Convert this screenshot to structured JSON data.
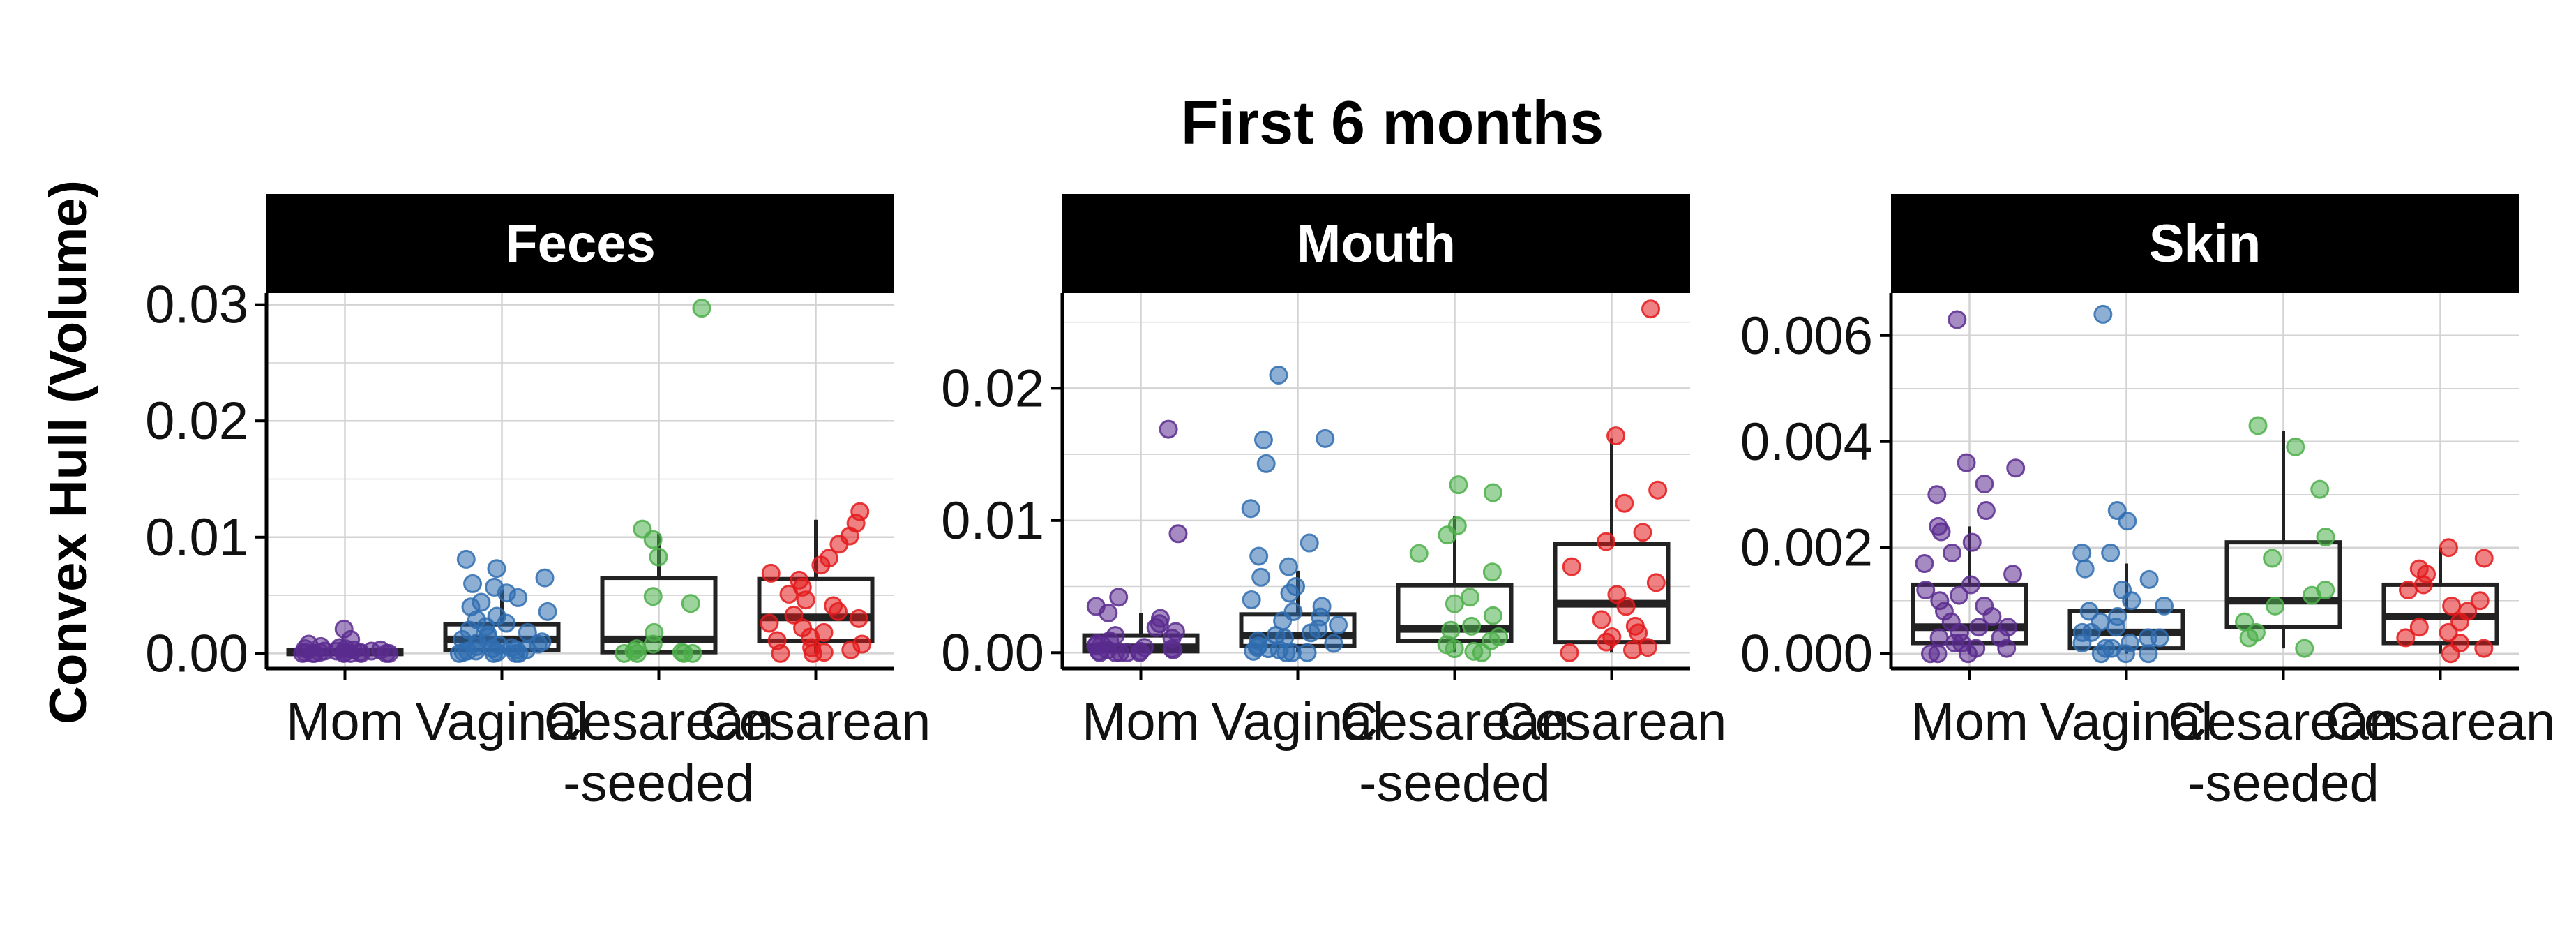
{
  "colors": {
    "Mom": "#5B2C8F",
    "Vaginal": "#2F6DB0",
    "Cesarean-seeded": "#4DAF4A",
    "Cesarean": "#E41A1C",
    "strip_bg": "#000000",
    "strip_text": "#ffffff",
    "grid": "#d3d3d3",
    "box": "#222222"
  },
  "chart_data": {
    "type": "box",
    "title": "First 6 months",
    "ylabel": "Convex Hull (Volume)",
    "xlabel": "",
    "grid": true,
    "categories": [
      "Mom",
      "Vaginal",
      "Cesarean-seeded",
      "Cesarean"
    ],
    "category_labels": [
      [
        "Mom"
      ],
      [
        "Vaginal"
      ],
      [
        "Cesarean",
        "-seeded"
      ],
      [
        "Cesarean"
      ]
    ],
    "panels": [
      {
        "name": "Feces",
        "ylim": [
          -0.0013,
          0.031
        ],
        "yticks": [
          0,
          0.01,
          0.02,
          0.03
        ],
        "ytick_labels": [
          "0.00",
          "0.01",
          "0.02",
          "0.03"
        ],
        "boxes": [
          {
            "q1": 0.0,
            "median": 0.0001,
            "q3": 0.0003,
            "whisker_low": 0.0,
            "whisker_high": 0.0006
          },
          {
            "q1": 0.0003,
            "median": 0.0012,
            "q3": 0.0025,
            "whisker_low": 0.0,
            "whisker_high": 0.0055
          },
          {
            "q1": 0.0001,
            "median": 0.0012,
            "q3": 0.0065,
            "whisker_low": 0.0,
            "whisker_high": 0.0103
          },
          {
            "q1": 0.0011,
            "median": 0.0031,
            "q3": 0.0064,
            "whisker_low": 0.0,
            "whisker_high": 0.0115
          }
        ],
        "points": [
          [
            0.0021,
            0.0012,
            0.0008,
            0.0006,
            0.0005,
            0.0004,
            0.0004,
            0.0003,
            0.0003,
            0.0002,
            0.0002,
            0.0002,
            0.0001,
            0.0001,
            0.0001,
            0.0001,
            0.0,
            0.0,
            0.0,
            0.0,
            0.0,
            0.0,
            0.0,
            0.0
          ],
          [
            0.0081,
            0.0073,
            0.0065,
            0.006,
            0.0057,
            0.0052,
            0.0048,
            0.0044,
            0.004,
            0.0036,
            0.0032,
            0.0029,
            0.0026,
            0.0023,
            0.002,
            0.0018,
            0.0016,
            0.0014,
            0.0012,
            0.001,
            0.0009,
            0.0008,
            0.0007,
            0.0006,
            0.0005,
            0.0004,
            0.0003,
            0.0003,
            0.0002,
            0.0002,
            0.0001,
            0.0001,
            0.0,
            0.0,
            0.0,
            0.0
          ],
          [
            0.0297,
            0.0107,
            0.0098,
            0.0083,
            0.0049,
            0.0043,
            0.0018,
            0.0008,
            0.0004,
            0.0002,
            0.0001,
            0.0,
            0.0,
            0.0,
            0.0
          ],
          [
            0.0122,
            0.0112,
            0.0101,
            0.0094,
            0.0082,
            0.0076,
            0.0069,
            0.0063,
            0.0057,
            0.0051,
            0.0046,
            0.0041,
            0.0036,
            0.0033,
            0.003,
            0.0026,
            0.0022,
            0.0018,
            0.0014,
            0.0011,
            0.0008,
            0.0005,
            0.0003,
            0.0001,
            0.0,
            0.0
          ]
        ]
      },
      {
        "name": "Mouth",
        "ylim": [
          -0.0012,
          0.0272
        ],
        "yticks": [
          0,
          0.01,
          0.02
        ],
        "ytick_labels": [
          "0.00",
          "0.01",
          "0.02"
        ],
        "boxes": [
          {
            "q1": 0.0001,
            "median": 0.0004,
            "q3": 0.0013,
            "whisker_low": 0.0,
            "whisker_high": 0.003
          },
          {
            "q1": 0.0005,
            "median": 0.0013,
            "q3": 0.0029,
            "whisker_low": 0.0,
            "whisker_high": 0.0062
          },
          {
            "q1": 0.0009,
            "median": 0.0018,
            "q3": 0.0051,
            "whisker_low": 0.0,
            "whisker_high": 0.0103
          },
          {
            "q1": 0.0008,
            "median": 0.0037,
            "q3": 0.0082,
            "whisker_low": 0.0,
            "whisker_high": 0.0162
          }
        ],
        "points": [
          [
            0.0169,
            0.009,
            0.0042,
            0.0035,
            0.003,
            0.0026,
            0.0022,
            0.0019,
            0.0016,
            0.0013,
            0.0011,
            0.0009,
            0.0007,
            0.0006,
            0.0005,
            0.0004,
            0.0003,
            0.0002,
            0.0002,
            0.0001,
            0.0001,
            0.0,
            0.0,
            0.0,
            0.0,
            0.0
          ],
          [
            0.021,
            0.0162,
            0.0161,
            0.0143,
            0.0109,
            0.0083,
            0.0073,
            0.0065,
            0.0057,
            0.005,
            0.0045,
            0.004,
            0.0035,
            0.0031,
            0.0027,
            0.0024,
            0.0021,
            0.0018,
            0.0015,
            0.0013,
            0.0011,
            0.0009,
            0.0007,
            0.0005,
            0.0004,
            0.0003,
            0.0002,
            0.0001,
            0.0,
            0.0,
            0.0
          ],
          [
            0.0127,
            0.0121,
            0.0096,
            0.0089,
            0.0075,
            0.0061,
            0.0042,
            0.0037,
            0.0028,
            0.002,
            0.0017,
            0.0012,
            0.0009,
            0.0006,
            0.0003,
            0.0001,
            0.0
          ],
          [
            0.026,
            0.0164,
            0.0123,
            0.0113,
            0.0091,
            0.0084,
            0.0065,
            0.0053,
            0.0044,
            0.0035,
            0.0025,
            0.002,
            0.0015,
            0.0012,
            0.0008,
            0.0004,
            0.0002,
            0.0
          ]
        ]
      },
      {
        "name": "Skin",
        "ylim": [
          -0.00028,
          0.0068
        ],
        "yticks": [
          0,
          0.002,
          0.004,
          0.006
        ],
        "ytick_labels": [
          "0.000",
          "0.002",
          "0.004",
          "0.006"
        ],
        "boxes": [
          {
            "q1": 0.0002,
            "median": 0.0005,
            "q3": 0.0013,
            "whisker_low": 0.0,
            "whisker_high": 0.0024
          },
          {
            "q1": 0.0001,
            "median": 0.0004,
            "q3": 0.0008,
            "whisker_low": 0.0,
            "whisker_high": 0.0017
          },
          {
            "q1": 0.0005,
            "median": 0.001,
            "q3": 0.0021,
            "whisker_low": 0.0001,
            "whisker_high": 0.0042
          },
          {
            "q1": 0.0002,
            "median": 0.0007,
            "q3": 0.0013,
            "whisker_low": 0.0,
            "whisker_high": 0.002
          }
        ],
        "points": [
          [
            0.0063,
            0.0036,
            0.0035,
            0.0032,
            0.003,
            0.0027,
            0.0024,
            0.0023,
            0.0021,
            0.0019,
            0.0017,
            0.0015,
            0.0013,
            0.0012,
            0.0011,
            0.001,
            0.0009,
            0.0008,
            0.0007,
            0.0006,
            0.0005,
            0.0005,
            0.0004,
            0.0003,
            0.0003,
            0.0002,
            0.0002,
            0.0001,
            0.0001,
            0.0,
            0.0,
            0.0
          ],
          [
            0.0064,
            0.0027,
            0.0025,
            0.0019,
            0.0019,
            0.0016,
            0.0014,
            0.0012,
            0.001,
            0.0009,
            0.0008,
            0.0007,
            0.0006,
            0.0005,
            0.0004,
            0.0004,
            0.0003,
            0.0003,
            0.0002,
            0.0002,
            0.0001,
            0.0001,
            0.0,
            0.0,
            0.0
          ],
          [
            0.0043,
            0.0039,
            0.0031,
            0.0022,
            0.0018,
            0.0012,
            0.0011,
            0.0009,
            0.0006,
            0.0004,
            0.0003,
            0.0001
          ],
          [
            0.002,
            0.0018,
            0.0016,
            0.0015,
            0.0013,
            0.0012,
            0.001,
            0.0009,
            0.0008,
            0.0006,
            0.0005,
            0.0004,
            0.0003,
            0.0002,
            0.0001,
            0.0
          ]
        ]
      }
    ]
  }
}
